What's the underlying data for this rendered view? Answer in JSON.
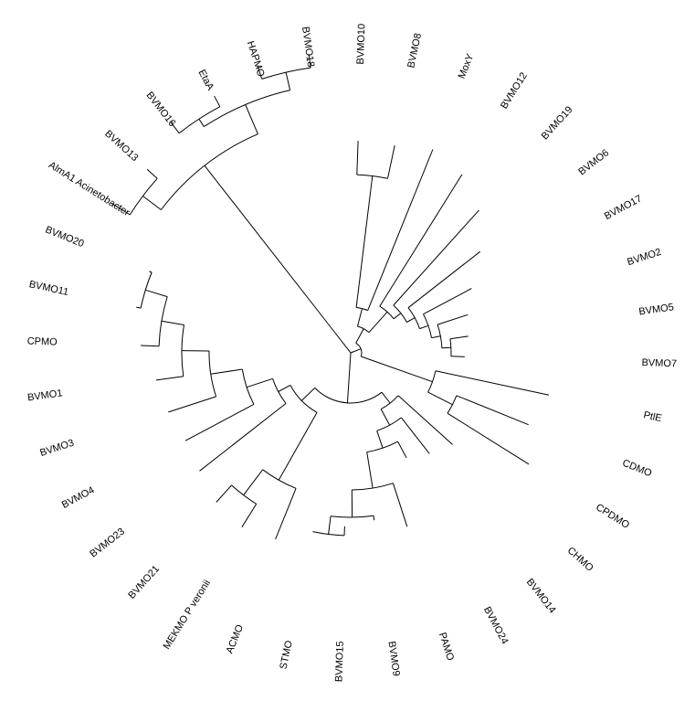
{
  "chart_data": {
    "type": "tree",
    "layout": "circular",
    "leaves": [
      {
        "name": "BVMO10"
      },
      {
        "name": "BVMO8"
      },
      {
        "name": "MoxY"
      },
      {
        "name": "BVMO12"
      },
      {
        "name": "BVMO19"
      },
      {
        "name": "BVMO6"
      },
      {
        "name": "BVMO17"
      },
      {
        "name": "BVMO2"
      },
      {
        "name": "BVMO5"
      },
      {
        "name": "BVMO7"
      },
      {
        "name": "PtlE"
      },
      {
        "name": "CDMO"
      },
      {
        "name": "CPDMO"
      },
      {
        "name": "CHMO"
      },
      {
        "name": "BVMO14"
      },
      {
        "name": "BVMO24"
      },
      {
        "name": "PAMO"
      },
      {
        "name": "BVMO9"
      },
      {
        "name": "BVMO15"
      },
      {
        "name": "STMO"
      },
      {
        "name": "ACMO"
      },
      {
        "name": "MEKMO P veronii"
      },
      {
        "name": "BVMO21"
      },
      {
        "name": "BVMO23"
      },
      {
        "name": "BVMO4"
      },
      {
        "name": "BVMO3"
      },
      {
        "name": "BVMO1"
      },
      {
        "name": "CPMO"
      },
      {
        "name": "BVMO11"
      },
      {
        "name": "BVMO20"
      },
      {
        "name": "AlmA1 Acinetobacter"
      },
      {
        "name": "BVMO13"
      },
      {
        "name": "BVMO16"
      },
      {
        "name": "EtaA"
      },
      {
        "name": "HAPMO"
      },
      {
        "name": "BVMO18"
      }
    ]
  }
}
